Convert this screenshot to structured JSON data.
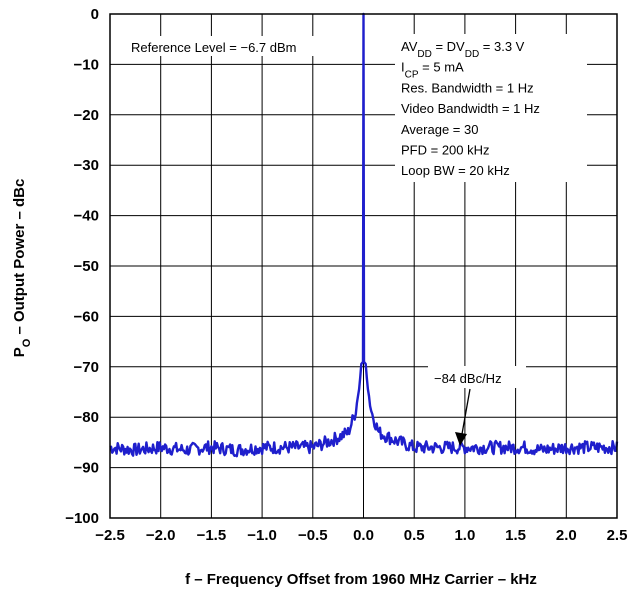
{
  "chart_data": {
    "type": "line",
    "xlabel": "f – Frequency Offset from 1960 MHz Carrier – kHz",
    "ylabel": {
      "prefix": "P",
      "sub": "O",
      "rest": " – Output Power – dBc"
    },
    "xlim": [
      -2.5,
      2.5
    ],
    "ylim": [
      -100,
      0
    ],
    "x_ticks": [
      -2.5,
      -2.0,
      -1.5,
      -1.0,
      -0.5,
      0.0,
      0.5,
      1.0,
      1.5,
      2.0,
      2.5
    ],
    "x_tick_labels": [
      "−2.5",
      "−2.0",
      "−1.5",
      "−1.0",
      "−0.5",
      "0.0",
      "0.5",
      "1.0",
      "1.5",
      "2.0",
      "2.5"
    ],
    "y_ticks": [
      0,
      -10,
      -20,
      -30,
      -40,
      -50,
      -60,
      -70,
      -80,
      -90,
      -100
    ],
    "y_tick_labels": [
      "0",
      "−10",
      "−20",
      "−30",
      "−40",
      "−50",
      "−60",
      "−70",
      "−80",
      "−90",
      "−100"
    ],
    "grid": true,
    "line_color": "#1f1fcc",
    "series": [
      {
        "x": [
          -2.5,
          -2.25,
          -2.0,
          -1.75,
          -1.55,
          -1.5,
          -1.25,
          -1.0,
          -0.75,
          -0.5,
          -0.3,
          -0.15,
          -0.08,
          -0.04,
          -0.02,
          0.0,
          0.02,
          0.04,
          0.08,
          0.15,
          0.3,
          0.5,
          0.75,
          1.0,
          1.25,
          1.5,
          1.6,
          1.75,
          2.0,
          2.25,
          2.5
        ],
        "y": [
          -86,
          -86.5,
          -86,
          -86.5,
          -86,
          -86,
          -86.5,
          -86,
          -86,
          -86,
          -84.5,
          -83,
          -79,
          -74,
          -69,
          0,
          -69,
          -74,
          -79,
          -83,
          -84.5,
          -86,
          -86,
          -86,
          -86,
          -86,
          -86,
          -86.5,
          -86,
          -86,
          -86
        ]
      }
    ],
    "annotations": {
      "reference_level": "Reference Level = −6.7 dBm",
      "conditions": [
        {
          "main": "AV",
          "sub": "DD",
          "mid": " = DV",
          "sub2": "DD",
          "rest": " = 3.3 V"
        },
        {
          "main": "I",
          "sub": "CP",
          "rest": " = 5 mA"
        },
        {
          "main": "Res. Bandwidth = 1 Hz"
        },
        {
          "main": "Video Bandwidth = 1 Hz"
        },
        {
          "main": "Average = 30"
        },
        {
          "main": "PFD = 200 kHz"
        },
        {
          "main": "Loop BW = 20 kHz"
        }
      ],
      "noise_floor_label": "−84 dBc/Hz",
      "noise_floor_arrow_target": {
        "x": 0.93,
        "y": -85.5
      }
    }
  }
}
